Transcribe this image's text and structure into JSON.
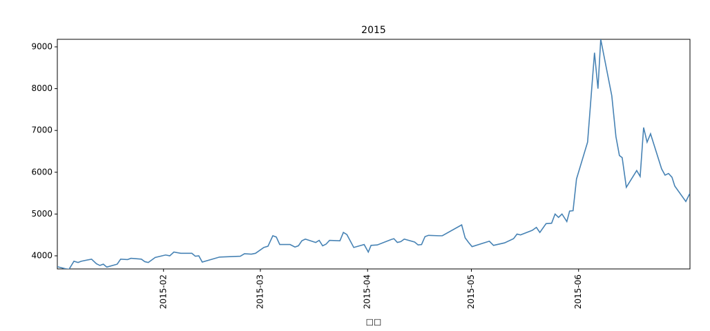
{
  "chart_data": {
    "type": "line",
    "title": "2015",
    "x_label": "□□",
    "x": [
      1.3,
      3.7,
      4.7,
      6.1,
      7.3,
      8.2,
      11.2,
      12.6,
      13.6,
      14.6,
      15.6,
      18.6,
      19.6,
      21.6,
      22.6,
      25.6,
      26.6,
      27.6,
      29.6,
      32.6,
      33.8,
      35.0,
      37.0,
      40.2,
      41.2,
      42.2,
      43.2,
      48.2,
      54.2,
      55.4,
      57.4,
      58.6,
      61.0,
      62.2,
      63.6,
      64.6,
      65.6,
      68.6,
      70.0,
      71.0,
      72.0,
      73.0,
      76.0,
      77.0,
      78.0,
      79.0,
      80.0,
      83.0,
      84.0,
      85.0,
      87.0,
      90.0,
      91.2,
      92.0,
      93.8,
      97.8,
      98.6,
      99.6,
      100.6,
      101.6,
      104.6,
      105.6,
      106.6,
      107.6,
      108.6,
      111.6,
      112.6,
      118.2,
      119.2,
      120.2,
      121.2,
      126.2,
      127.4,
      130.6,
      133.2,
      134.2,
      135.2,
      138.6,
      139.8,
      140.8,
      142.6,
      144.2,
      145.2,
      146.2,
      147.2,
      148.6,
      149.4,
      150.4,
      151.4,
      154.6,
      156.6,
      157.6,
      158.4,
      161.6,
      162.8,
      163.8,
      164.6,
      165.8,
      168.8,
      169.8,
      170.8,
      171.8,
      172.8,
      176.0,
      177.0,
      178.0,
      179.0,
      179.8,
      183.0,
      184.2
    ],
    "series": [
      {
        "name": "2015",
        "color": "#4682b4",
        "values": [
          3740,
          3690,
          3680,
          3870,
          3840,
          3870,
          3920,
          3810,
          3770,
          3800,
          3730,
          3800,
          3920,
          3910,
          3940,
          3920,
          3860,
          3840,
          3960,
          4020,
          4000,
          4090,
          4060,
          4060,
          3990,
          4000,
          3850,
          3970,
          3990,
          4050,
          4040,
          4060,
          4200,
          4230,
          4480,
          4450,
          4270,
          4270,
          4210,
          4240,
          4360,
          4400,
          4320,
          4370,
          4240,
          4280,
          4370,
          4360,
          4560,
          4510,
          4200,
          4270,
          4090,
          4250,
          4260,
          4390,
          4410,
          4320,
          4340,
          4400,
          4330,
          4260,
          4270,
          4460,
          4490,
          4480,
          4480,
          4740,
          4430,
          4320,
          4220,
          4350,
          4250,
          4310,
          4410,
          4520,
          4500,
          4610,
          4680,
          4560,
          4770,
          4780,
          5000,
          4920,
          5000,
          4820,
          5070,
          5080,
          5840,
          6720,
          8860,
          8000,
          9180,
          7830,
          6850,
          6400,
          6350,
          5640,
          6040,
          5900,
          7070,
          6720,
          6920,
          6080,
          5930,
          5970,
          5880,
          5670,
          5300,
          5500
        ]
      }
    ],
    "xlim": [
      1.3,
      184.2
    ],
    "xticks": [
      {
        "value": 32,
        "label": "2015-02"
      },
      {
        "value": 60,
        "label": "2015-03"
      },
      {
        "value": 91,
        "label": "2015-04"
      },
      {
        "value": 121,
        "label": "2015-05"
      },
      {
        "value": 152,
        "label": "2015-06"
      }
    ],
    "ylim": [
      3686,
      9181
    ],
    "yticks": [
      4000,
      5000,
      6000,
      7000,
      8000,
      9000
    ],
    "grid": false
  }
}
